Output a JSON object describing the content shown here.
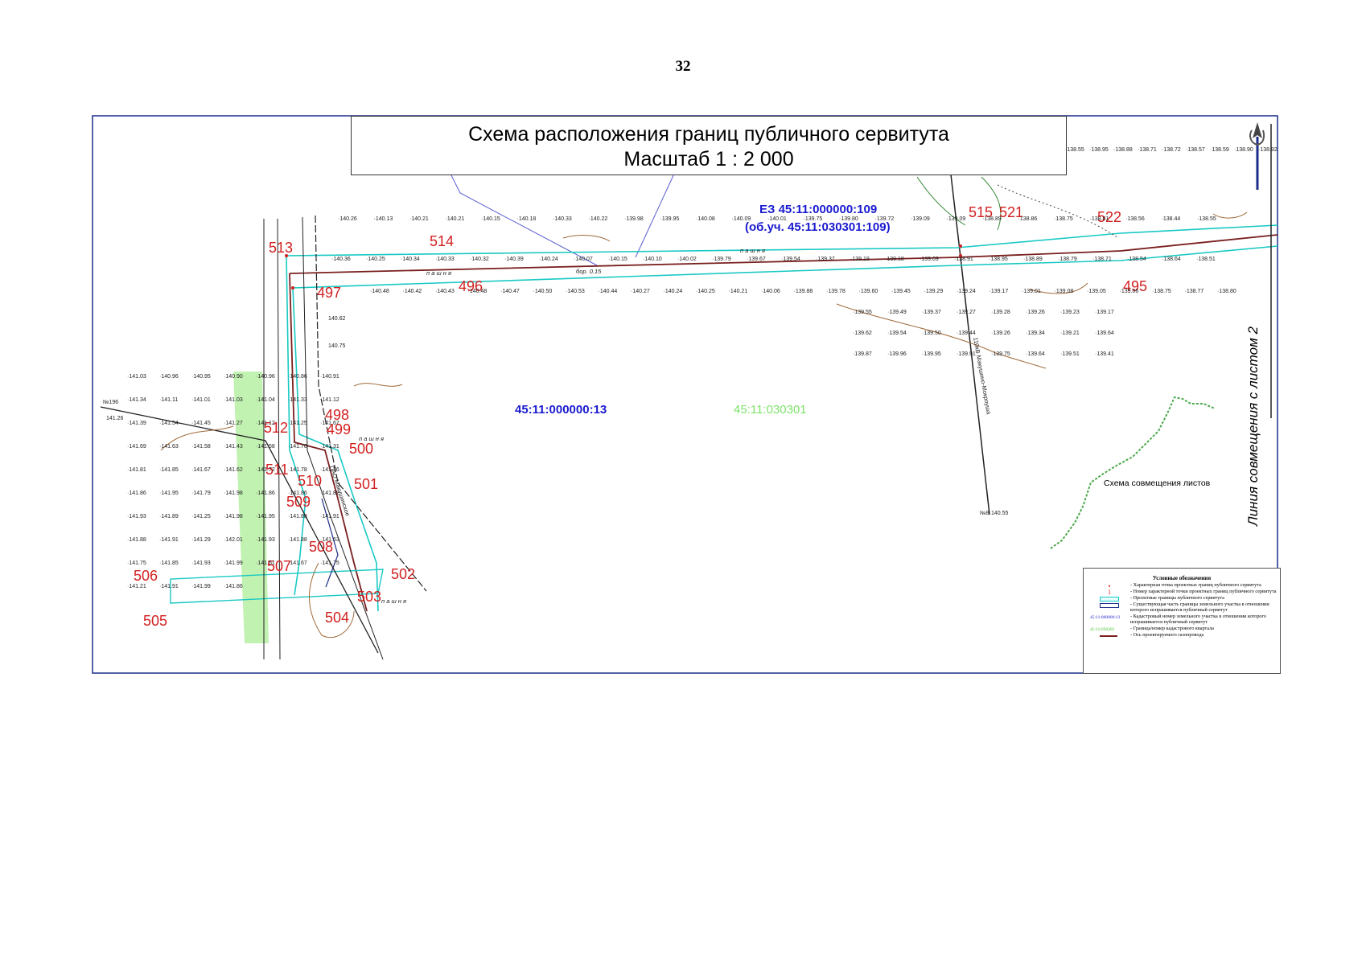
{
  "page": {
    "number": "32"
  },
  "title": {
    "line1": "Схема расположения границ публичного сервитута",
    "line2": "Масштаб 1 : 2 000"
  },
  "side_label": "Линия совмещения с листом 2",
  "parcel_labels": {
    "ez": "ЕЗ 45:11:000000:109",
    "ez_sub": "(об.уч. 45:11:030301:109)",
    "parcel_13": "45:11:000000:13",
    "quarter": "45:11:030301"
  },
  "schema_label": "Схема совмещения листов",
  "colors": {
    "servitude_boundary": "#19c9c4",
    "existing_parcel": "#1c2d8a",
    "pipeline_axis": "#7a1f1f",
    "point_numbers": "#d22020",
    "cadastral_blue": "#1a1ad0",
    "quarter_green": "#7ee36a",
    "green_strip": "#b7f0a4"
  },
  "point_numbers": [
    "513",
    "514",
    "497",
    "496",
    "515",
    "521",
    "522",
    "495",
    "498",
    "499",
    "500",
    "501",
    "512",
    "511",
    "510",
    "509",
    "508",
    "507",
    "506",
    "505",
    "504",
    "503",
    "502"
  ],
  "elevations": {
    "top_row": [
      "140.26",
      "140.13",
      "140.21",
      "140.21",
      "140.15",
      "140.18",
      "140.33",
      "140.22",
      "139.98",
      "139.95",
      "140.08",
      "140.09",
      "140.01",
      "139.75",
      "139.80",
      "139.72",
      "139.09",
      "139.09",
      "138.89",
      "138.86",
      "138.75",
      "138.81",
      "138.56",
      "138.44",
      "138.55"
    ],
    "row_2": [
      "140.36",
      "140.25",
      "140.34",
      "140.33",
      "140.32",
      "140.39",
      "140.24",
      "140.07",
      "140.15",
      "140.10",
      "140.02",
      "139.79",
      "139.67",
      "139.54",
      "139.37",
      "139.19",
      "139.18",
      "139.09",
      "138.91",
      "138.95",
      "138.89",
      "138.79",
      "138.71",
      "138.54",
      "138.64",
      "138.51"
    ],
    "row_3": [
      "140.48",
      "140.42",
      "140.43",
      "140.48",
      "140.47",
      "140.50",
      "140.53",
      "140.44",
      "140.27",
      "140.24",
      "140.25",
      "140.21",
      "140.06",
      "139.88",
      "139.78",
      "139.60",
      "139.45",
      "139.29",
      "139.24",
      "139.17",
      "139.01",
      "139.08",
      "139.05",
      "139.06",
      "138.75",
      "138.77",
      "138.80"
    ],
    "right_block": [
      "139.55",
      "139.49",
      "139.37",
      "139.27",
      "139.28",
      "139.26",
      "139.23",
      "139.17",
      "139.62",
      "139.54",
      "139.50",
      "139.44",
      "139.26",
      "139.34",
      "139.21",
      "139.64",
      "139.87",
      "139.96",
      "139.95",
      "139.91",
      "139.75",
      "139.64",
      "139.51",
      "139.41"
    ],
    "upper_right": [
      "138.55",
      "138.95",
      "138.88",
      "138.71",
      "138.72",
      "138.57",
      "138.59",
      "138.90",
      "138.92"
    ],
    "left_block": [
      "141.03",
      "140.96",
      "140.95",
      "140.90",
      "140.96",
      "140.86",
      "140.91",
      "141.34",
      "141.11",
      "141.01",
      "141.03",
      "141.04",
      "141.33",
      "141.12",
      "141.39",
      "141.54",
      "141.45",
      "141.27",
      "141.12",
      "141.25",
      "141.67",
      "141.69",
      "141.63",
      "141.58",
      "141.43",
      "141.58",
      "141.70",
      "141.31",
      "141.81",
      "141.85",
      "141.67",
      "141.62",
      "141.72",
      "141.78",
      "141.76",
      "141.86",
      "141.95",
      "141.79",
      "141.98",
      "141.86",
      "141.86",
      "141.82",
      "141.93",
      "141.89",
      "141.25",
      "141.98",
      "141.95",
      "141.88",
      "141.91",
      "141.88",
      "141.91",
      "141.29",
      "142.01",
      "141.93",
      "141.88",
      "141.63",
      "141.75",
      "141.85",
      "141.93",
      "141.99",
      "141.51",
      "141.67",
      "141.75",
      "141.21",
      "141.91",
      "141.99",
      "141.86"
    ],
    "special": [
      "140.55",
      "141.26",
      "140.62",
      "140.75"
    ]
  },
  "map_annotations": {
    "crop": "п а ш н я",
    "well": "№8",
    "well_left": "№196",
    "pipeline_right": "110кВ Макушино-Мокроуша",
    "pipeline_left": "ПАО Макушинское",
    "borehole": "бор. 0.15"
  },
  "legend": {
    "title": "Условные обозначения",
    "items": [
      {
        "symbol": "point",
        "glyph": "•",
        "text": "- Характерная точка проектных границ публичного сервитута"
      },
      {
        "symbol": "number",
        "glyph": "1",
        "text": "- Номер характерной точки проектных границ публичного сервитута"
      },
      {
        "symbol": "cyan-box",
        "text": "- Проектные границы публичного сервитута"
      },
      {
        "symbol": "navy-box",
        "text": "- Существующая часть границы земельного участка в отношении которого испрашивается публичный сервитут"
      },
      {
        "symbol": "blue-text",
        "glyph": "45:11:000000:13",
        "text": "- Кадастровый номер земельного участка в отношении которого испрашивается публичный сервитут"
      },
      {
        "symbol": "green-text",
        "glyph": "45:11:030301",
        "text": "- Граница/номер кадастрового квартала"
      },
      {
        "symbol": "line",
        "text": "- Ось проектируемого газопровода"
      }
    ]
  }
}
